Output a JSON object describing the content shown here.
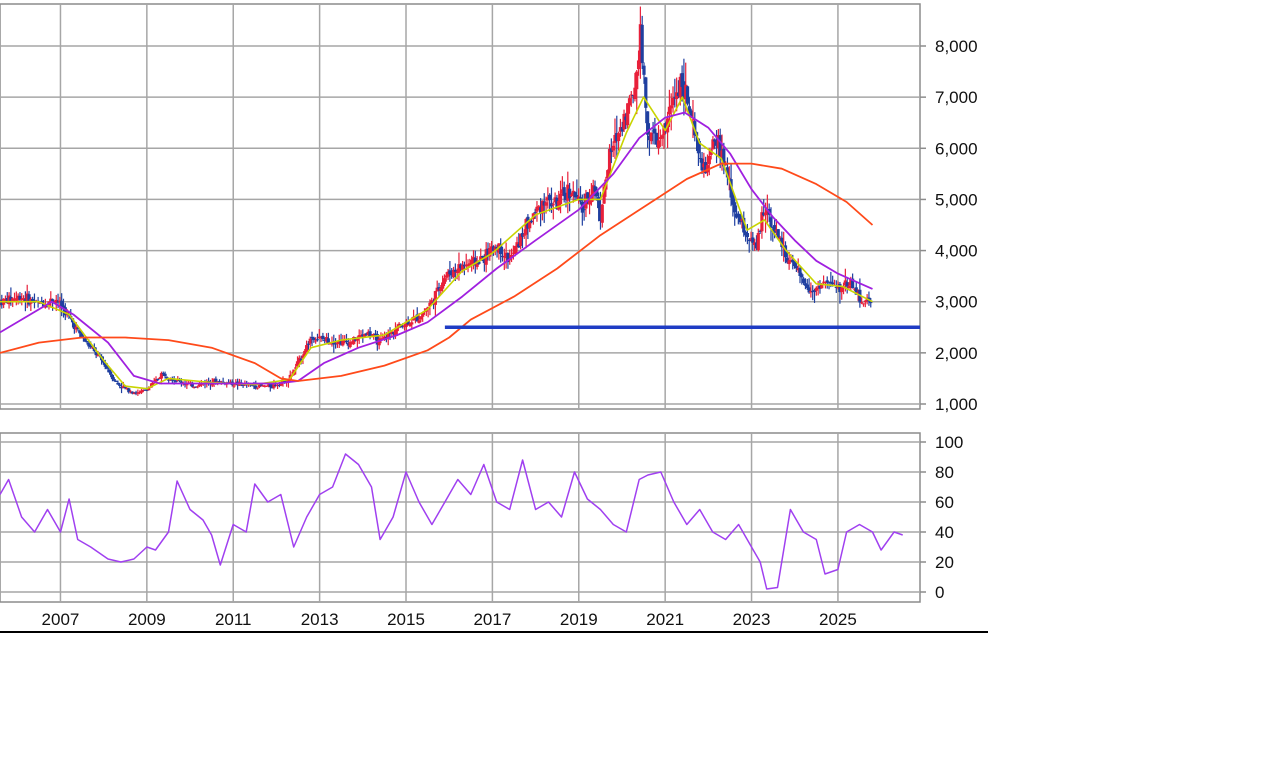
{
  "colors": {
    "grid": "#a6a6a6",
    "frame": "#8c8c8c",
    "candle_up": "#e8203a",
    "candle_down": "#1f3fa0",
    "ma_short": "#c9d400",
    "ma_mid": "#a020e0",
    "ma_long": "#ff4a1a",
    "support_line": "#1f3cc4",
    "rsi": "#a040f0",
    "text": "#111111",
    "baseline": "#000000"
  },
  "chart_data": [
    {
      "type": "candlestick",
      "title": "",
      "xlabel": "",
      "ylabel": "",
      "ylim": [
        1000,
        8800
      ],
      "yticks": [
        1000,
        2000,
        3000,
        4000,
        5000,
        6000,
        7000,
        8000
      ],
      "ytick_labels": [
        "1,000",
        "2,000",
        "3,000",
        "4,000",
        "5,000",
        "6,000",
        "7,000",
        "8,000"
      ],
      "xlim": [
        2006.1,
        2027.4
      ],
      "xticks": [
        2007,
        2009,
        2011,
        2013,
        2015,
        2017,
        2019,
        2021,
        2023,
        2025
      ],
      "xtick_labels": [
        "2007",
        "2009",
        "2011",
        "2013",
        "2015",
        "2017",
        "2019",
        "2021",
        "2023",
        "2025"
      ],
      "grid": true,
      "legend": "none",
      "price_path": [
        [
          2006.1,
          3000
        ],
        [
          2006.6,
          3100
        ],
        [
          2007.0,
          2950
        ],
        [
          2007.4,
          3050
        ],
        [
          2007.7,
          2700
        ],
        [
          2008.0,
          2300
        ],
        [
          2008.5,
          1800
        ],
        [
          2008.8,
          1400
        ],
        [
          2009.0,
          1300
        ],
        [
          2009.3,
          1200
        ],
        [
          2009.6,
          1350
        ],
        [
          2009.85,
          1600
        ],
        [
          2010.2,
          1450
        ],
        [
          2010.6,
          1350
        ],
        [
          2011.0,
          1450
        ],
        [
          2011.5,
          1400
        ],
        [
          2012.0,
          1350
        ],
        [
          2012.4,
          1350
        ],
        [
          2012.8,
          1500
        ],
        [
          2013.0,
          1800
        ],
        [
          2013.3,
          2300
        ],
        [
          2013.7,
          2250
        ],
        [
          2014.2,
          2200
        ],
        [
          2014.6,
          2400
        ],
        [
          2014.9,
          2200
        ],
        [
          2015.3,
          2500
        ],
        [
          2015.8,
          2700
        ],
        [
          2016.1,
          3000
        ],
        [
          2016.4,
          3500
        ],
        [
          2016.8,
          3700
        ],
        [
          2017.2,
          3800
        ],
        [
          2017.6,
          4100
        ],
        [
          2017.9,
          3800
        ],
        [
          2018.3,
          4500
        ],
        [
          2018.7,
          5000
        ],
        [
          2019.0,
          4900
        ],
        [
          2019.3,
          5200
        ],
        [
          2019.6,
          4800
        ],
        [
          2019.85,
          5300
        ],
        [
          2020.0,
          4700
        ],
        [
          2020.2,
          5800
        ],
        [
          2020.5,
          6500
        ],
        [
          2020.8,
          7200
        ],
        [
          2020.92,
          8300
        ],
        [
          2021.1,
          6300
        ],
        [
          2021.4,
          6100
        ],
        [
          2021.7,
          7000
        ],
        [
          2021.9,
          7400
        ],
        [
          2022.1,
          6500
        ],
        [
          2022.4,
          5500
        ],
        [
          2022.7,
          6200
        ],
        [
          2022.9,
          5600
        ],
        [
          2023.1,
          4800
        ],
        [
          2023.4,
          4300
        ],
        [
          2023.6,
          4000
        ],
        [
          2023.8,
          4900
        ],
        [
          2024.0,
          4500
        ],
        [
          2024.3,
          3900
        ],
        [
          2024.6,
          3500
        ],
        [
          2024.9,
          3200
        ],
        [
          2025.2,
          3400
        ],
        [
          2025.5,
          3250
        ],
        [
          2025.8,
          3400
        ],
        [
          2026.0,
          3050
        ],
        [
          2026.3,
          2950
        ]
      ],
      "series": [
        {
          "kind": "moving_average_short",
          "points": [
            [
              2006.1,
              3000
            ],
            [
              2007.0,
              3000
            ],
            [
              2007.7,
              2750
            ],
            [
              2008.5,
              1850
            ],
            [
              2009.0,
              1350
            ],
            [
              2009.5,
              1300
            ],
            [
              2010.0,
              1500
            ],
            [
              2011.0,
              1420
            ],
            [
              2012.0,
              1380
            ],
            [
              2012.8,
              1480
            ],
            [
              2013.3,
              2100
            ],
            [
              2014.0,
              2250
            ],
            [
              2015.0,
              2350
            ],
            [
              2016.0,
              2850
            ],
            [
              2016.8,
              3600
            ],
            [
              2017.5,
              3950
            ],
            [
              2018.5,
              4700
            ],
            [
              2019.5,
              5000
            ],
            [
              2020.0,
              5000
            ],
            [
              2020.6,
              6300
            ],
            [
              2021.0,
              7000
            ],
            [
              2021.5,
              6350
            ],
            [
              2021.9,
              7000
            ],
            [
              2022.3,
              6100
            ],
            [
              2022.8,
              5800
            ],
            [
              2023.4,
              4400
            ],
            [
              2023.8,
              4600
            ],
            [
              2024.3,
              4000
            ],
            [
              2025.0,
              3350
            ],
            [
              2025.6,
              3300
            ],
            [
              2026.3,
              3000
            ]
          ]
        },
        {
          "kind": "moving_average_mid",
          "points": [
            [
              2006.1,
              2400
            ],
            [
              2006.6,
              2650
            ],
            [
              2007.3,
              3000
            ],
            [
              2007.8,
              2750
            ],
            [
              2008.6,
              2200
            ],
            [
              2009.2,
              1550
            ],
            [
              2009.8,
              1400
            ],
            [
              2010.5,
              1400
            ],
            [
              2011.5,
              1400
            ],
            [
              2012.5,
              1400
            ],
            [
              2013.0,
              1450
            ],
            [
              2013.6,
              1800
            ],
            [
              2014.4,
              2100
            ],
            [
              2015.3,
              2350
            ],
            [
              2016.0,
              2600
            ],
            [
              2016.8,
              3100
            ],
            [
              2017.6,
              3650
            ],
            [
              2018.5,
              4200
            ],
            [
              2019.5,
              4800
            ],
            [
              2020.3,
              5500
            ],
            [
              2020.9,
              6200
            ],
            [
              2021.5,
              6600
            ],
            [
              2021.95,
              6700
            ],
            [
              2022.5,
              6400
            ],
            [
              2023.0,
              5900
            ],
            [
              2023.5,
              5200
            ],
            [
              2024.0,
              4650
            ],
            [
              2024.5,
              4200
            ],
            [
              2025.0,
              3800
            ],
            [
              2025.5,
              3550
            ],
            [
              2025.9,
              3400
            ],
            [
              2026.3,
              3250
            ]
          ]
        },
        {
          "kind": "moving_average_long",
          "points": [
            [
              2006.1,
              2000
            ],
            [
              2007.0,
              2200
            ],
            [
              2008.0,
              2300
            ],
            [
              2009.0,
              2300
            ],
            [
              2010.0,
              2250
            ],
            [
              2011.0,
              2100
            ],
            [
              2012.0,
              1800
            ],
            [
              2012.6,
              1500
            ],
            [
              2013.0,
              1450
            ],
            [
              2014.0,
              1550
            ],
            [
              2015.0,
              1750
            ],
            [
              2016.0,
              2050
            ],
            [
              2016.5,
              2300
            ],
            [
              2017.0,
              2650
            ],
            [
              2018.0,
              3100
            ],
            [
              2019.0,
              3650
            ],
            [
              2020.0,
              4300
            ],
            [
              2021.0,
              4850
            ],
            [
              2022.0,
              5400
            ],
            [
              2022.8,
              5700
            ],
            [
              2023.5,
              5700
            ],
            [
              2024.2,
              5600
            ],
            [
              2025.0,
              5300
            ],
            [
              2025.7,
              4950
            ],
            [
              2026.3,
              4500
            ]
          ]
        },
        {
          "kind": "support_level",
          "value": 2500,
          "x_start": 2016.4,
          "x_end": 2027.4
        }
      ]
    },
    {
      "type": "line",
      "title": "",
      "xlabel": "",
      "ylabel": "",
      "ylim": [
        0,
        100
      ],
      "yticks": [
        0,
        20,
        40,
        60,
        80,
        100
      ],
      "ytick_labels": [
        "0",
        "20",
        "40",
        "60",
        "80",
        "100"
      ],
      "grid": true,
      "legend": "none",
      "series": [
        {
          "kind": "oscillator",
          "points": [
            [
              2006.1,
              65
            ],
            [
              2006.3,
              75
            ],
            [
              2006.6,
              50
            ],
            [
              2006.9,
              40
            ],
            [
              2007.2,
              55
            ],
            [
              2007.5,
              40
            ],
            [
              2007.7,
              62
            ],
            [
              2007.9,
              35
            ],
            [
              2008.2,
              30
            ],
            [
              2008.6,
              22
            ],
            [
              2008.9,
              20
            ],
            [
              2009.2,
              22
            ],
            [
              2009.5,
              30
            ],
            [
              2009.7,
              28
            ],
            [
              2010.0,
              40
            ],
            [
              2010.2,
              74
            ],
            [
              2010.5,
              55
            ],
            [
              2010.8,
              48
            ],
            [
              2011.0,
              38
            ],
            [
              2011.2,
              18
            ],
            [
              2011.5,
              45
            ],
            [
              2011.8,
              40
            ],
            [
              2012.0,
              72
            ],
            [
              2012.3,
              60
            ],
            [
              2012.6,
              65
            ],
            [
              2012.9,
              30
            ],
            [
              2013.2,
              50
            ],
            [
              2013.5,
              65
            ],
            [
              2013.8,
              70
            ],
            [
              2014.1,
              92
            ],
            [
              2014.4,
              85
            ],
            [
              2014.7,
              70
            ],
            [
              2014.9,
              35
            ],
            [
              2015.2,
              50
            ],
            [
              2015.5,
              80
            ],
            [
              2015.8,
              60
            ],
            [
              2016.1,
              45
            ],
            [
              2016.4,
              60
            ],
            [
              2016.7,
              75
            ],
            [
              2017.0,
              65
            ],
            [
              2017.3,
              85
            ],
            [
              2017.6,
              60
            ],
            [
              2017.9,
              55
            ],
            [
              2018.2,
              88
            ],
            [
              2018.5,
              55
            ],
            [
              2018.8,
              60
            ],
            [
              2019.1,
              50
            ],
            [
              2019.4,
              80
            ],
            [
              2019.7,
              62
            ],
            [
              2020.0,
              55
            ],
            [
              2020.3,
              45
            ],
            [
              2020.6,
              40
            ],
            [
              2020.9,
              75
            ],
            [
              2021.1,
              78
            ],
            [
              2021.4,
              80
            ],
            [
              2021.7,
              60
            ],
            [
              2022.0,
              45
            ],
            [
              2022.3,
              55
            ],
            [
              2022.6,
              40
            ],
            [
              2022.9,
              35
            ],
            [
              2023.2,
              45
            ],
            [
              2023.5,
              30
            ],
            [
              2023.7,
              20
            ],
            [
              2023.85,
              2
            ],
            [
              2024.1,
              3
            ],
            [
              2024.4,
              55
            ],
            [
              2024.7,
              40
            ],
            [
              2025.0,
              35
            ],
            [
              2025.2,
              12
            ],
            [
              2025.5,
              15
            ],
            [
              2025.7,
              40
            ],
            [
              2026.0,
              45
            ],
            [
              2026.3,
              40
            ],
            [
              2026.5,
              28
            ],
            [
              2026.8,
              40
            ],
            [
              2027.0,
              38
            ]
          ]
        }
      ]
    }
  ]
}
